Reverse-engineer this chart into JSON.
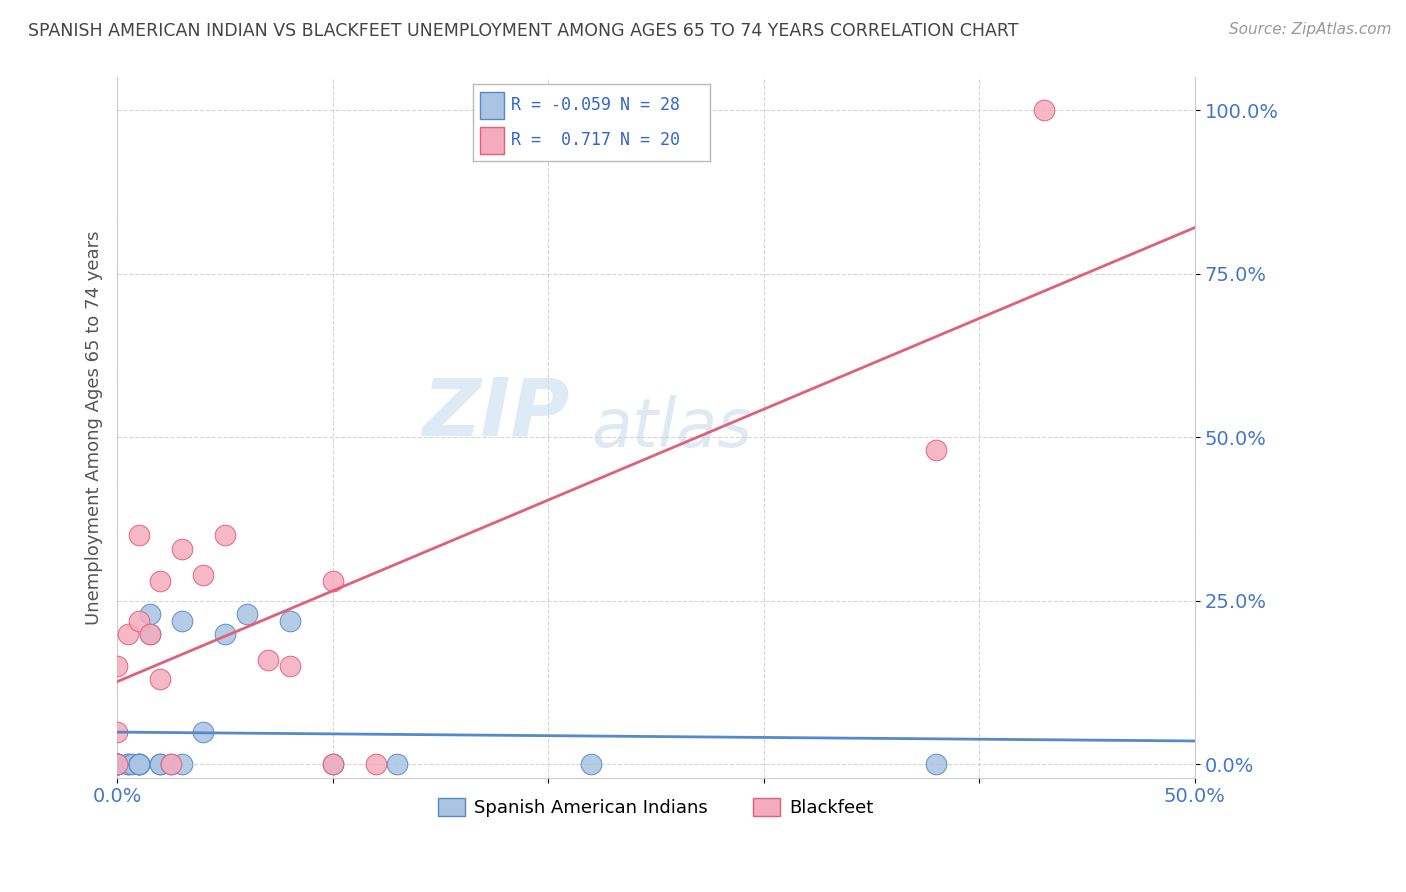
{
  "title": "SPANISH AMERICAN INDIAN VS BLACKFEET UNEMPLOYMENT AMONG AGES 65 TO 74 YEARS CORRELATION CHART",
  "source": "Source: ZipAtlas.com",
  "ylabel": "Unemployment Among Ages 65 to 74 years",
  "xlim": [
    0.0,
    0.5
  ],
  "ylim": [
    -0.02,
    1.05
  ],
  "xticks": [
    0.0,
    0.1,
    0.2,
    0.3,
    0.4,
    0.5
  ],
  "xticklabels": [
    "0.0%",
    "",
    "",
    "",
    "",
    "50.0%"
  ],
  "yticks": [
    0.0,
    0.25,
    0.5,
    0.75,
    1.0
  ],
  "yticklabels": [
    "0.0%",
    "25.0%",
    "50.0%",
    "75.0%",
    "100.0%"
  ],
  "r1": -0.059,
  "n1": 28,
  "r2": 0.717,
  "n2": 20,
  "color_blue": "#aac4e2",
  "color_pink": "#f5abbe",
  "line_blue": "#5588cc",
  "line_pink": "#e0607a",
  "tick_color": "#4477cc",
  "watermark_zip": "ZIP",
  "watermark_atlas": "atlas",
  "blue_scatter_x": [
    0.0,
    0.0,
    0.0,
    0.0,
    0.0,
    0.0,
    0.005,
    0.005,
    0.007,
    0.01,
    0.01,
    0.01,
    0.01,
    0.015,
    0.015,
    0.02,
    0.02,
    0.025,
    0.03,
    0.03,
    0.04,
    0.05,
    0.06,
    0.08,
    0.1,
    0.13,
    0.22,
    0.38
  ],
  "blue_scatter_y": [
    0.0,
    0.0,
    0.0,
    0.0,
    0.0,
    0.0,
    0.0,
    0.0,
    0.0,
    0.0,
    0.0,
    0.0,
    0.0,
    0.2,
    0.23,
    0.0,
    0.0,
    0.0,
    0.0,
    0.22,
    0.05,
    0.2,
    0.23,
    0.22,
    0.0,
    0.0,
    0.0,
    0.0
  ],
  "pink_scatter_x": [
    0.0,
    0.0,
    0.0,
    0.005,
    0.01,
    0.01,
    0.015,
    0.02,
    0.025,
    0.03,
    0.04,
    0.05,
    0.07,
    0.1,
    0.1,
    0.12,
    0.38,
    0.43,
    0.02,
    0.08
  ],
  "pink_scatter_y": [
    0.0,
    0.05,
    0.15,
    0.2,
    0.35,
    0.22,
    0.2,
    0.28,
    0.0,
    0.33,
    0.29,
    0.35,
    0.16,
    0.28,
    0.0,
    0.0,
    0.48,
    1.0,
    0.13,
    0.15
  ],
  "figsize": [
    14.06,
    8.92
  ],
  "dpi": 100
}
